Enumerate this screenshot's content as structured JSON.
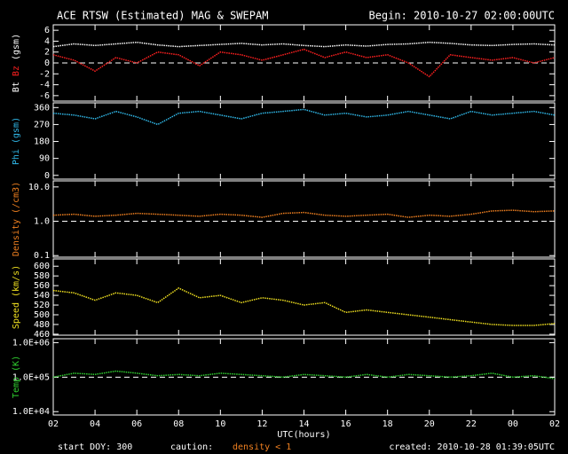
{
  "header": {
    "title": "ACE RTSW (Estimated) MAG & SWEPAM",
    "begin": "Begin: 2010-10-27 02:00:00UTC"
  },
  "chart_data": [
    {
      "type": "line",
      "ylabel": "(gsm)",
      "ylim": [
        -7,
        7
      ],
      "yticks": [
        6,
        4,
        2,
        0,
        -2,
        -4,
        -6
      ],
      "ref_line": 0,
      "xlim": [
        0,
        24
      ],
      "x": [
        0,
        1,
        2,
        3,
        4,
        5,
        6,
        7,
        8,
        9,
        10,
        11,
        12,
        13,
        14,
        15,
        16,
        17,
        18,
        19,
        20,
        21,
        22,
        23,
        24
      ],
      "series": [
        {
          "name": "Bt",
          "color": "#ffffff",
          "values": [
            3,
            3.5,
            3.2,
            3.5,
            3.8,
            3.3,
            3,
            3.2,
            3.4,
            3.6,
            3.3,
            3.5,
            3.2,
            3,
            3.3,
            3.1,
            3.4,
            3.5,
            3.8,
            3.6,
            3.3,
            3.2,
            3.4,
            3.5,
            3.3
          ]
        },
        {
          "name": "Bz",
          "color": "#ff2020",
          "values": [
            1.5,
            0.5,
            -1.5,
            1,
            0,
            2,
            1.5,
            -0.5,
            2,
            1.5,
            0.5,
            1.5,
            2.5,
            1,
            2,
            1,
            1.5,
            0,
            -2.5,
            1.5,
            1,
            0.5,
            1,
            0,
            1
          ]
        }
      ]
    },
    {
      "type": "line",
      "ylim": [
        -20,
        385
      ],
      "yticks": [
        360,
        270,
        180,
        90,
        0
      ],
      "xlim": [
        0,
        24
      ],
      "x": [
        0,
        1,
        2,
        3,
        4,
        5,
        6,
        7,
        8,
        9,
        10,
        11,
        12,
        13,
        14,
        15,
        16,
        17,
        18,
        19,
        20,
        21,
        22,
        23,
        24
      ],
      "series": [
        {
          "name": "Phi (gsm)",
          "color": "#30b8e8",
          "values": [
            330,
            320,
            300,
            340,
            310,
            270,
            330,
            340,
            320,
            300,
            330,
            340,
            350,
            320,
            330,
            310,
            320,
            340,
            320,
            300,
            340,
            320,
            330,
            340,
            320
          ]
        }
      ]
    },
    {
      "type": "line",
      "log": true,
      "ylim": [
        0.09,
        15
      ],
      "yticks": [
        {
          "value": 10,
          "label": "10.0"
        },
        {
          "value": 1,
          "label": "1.0"
        },
        0.1
      ],
      "ref_line": 1,
      "xlim": [
        0,
        24
      ],
      "x": [
        0,
        1,
        2,
        3,
        4,
        5,
        6,
        7,
        8,
        9,
        10,
        11,
        12,
        13,
        14,
        15,
        16,
        17,
        18,
        19,
        20,
        21,
        22,
        23,
        24
      ],
      "series": [
        {
          "name": "Density (/cm3)",
          "color": "#f08020",
          "values": [
            1.5,
            1.6,
            1.4,
            1.5,
            1.7,
            1.6,
            1.5,
            1.4,
            1.6,
            1.5,
            1.3,
            1.7,
            1.8,
            1.5,
            1.4,
            1.5,
            1.6,
            1.3,
            1.5,
            1.4,
            1.6,
            2,
            2.1,
            1.9,
            2
          ]
        }
      ]
    },
    {
      "type": "line",
      "ylim": [
        458,
        615
      ],
      "yticks": [
        600,
        580,
        560,
        540,
        520,
        500,
        480,
        460
      ],
      "xlim": [
        0,
        24
      ],
      "x": [
        0,
        1,
        2,
        3,
        4,
        5,
        6,
        7,
        8,
        9,
        10,
        11,
        12,
        13,
        14,
        15,
        16,
        17,
        18,
        19,
        20,
        21,
        22,
        23,
        24
      ],
      "series": [
        {
          "name": "Speed (km/s)",
          "color": "#f0e020",
          "values": [
            550,
            545,
            530,
            545,
            540,
            525,
            555,
            535,
            540,
            525,
            535,
            530,
            520,
            525,
            505,
            510,
            505,
            500,
            495,
            490,
            485,
            480,
            478,
            478,
            482
          ]
        }
      ]
    },
    {
      "type": "line",
      "log": true,
      "ylim": [
        8000,
        1300000
      ],
      "yticks": [
        {
          "value": 1000000,
          "label": "1.0E+06"
        },
        {
          "value": 100000,
          "label": "1.0E+05"
        },
        {
          "value": 10000,
          "label": "1.0E+04"
        }
      ],
      "ref_line": 100000,
      "xlim": [
        0,
        24
      ],
      "x": [
        0,
        1,
        2,
        3,
        4,
        5,
        6,
        7,
        8,
        9,
        10,
        11,
        12,
        13,
        14,
        15,
        16,
        17,
        18,
        19,
        20,
        21,
        22,
        23,
        24
      ],
      "xticks": [
        {
          "value": 0,
          "label": "02"
        },
        {
          "value": 2,
          "label": "04"
        },
        {
          "value": 4,
          "label": "06"
        },
        {
          "value": 6,
          "label": "08"
        },
        {
          "value": 8,
          "label": "10"
        },
        {
          "value": 10,
          "label": "12"
        },
        {
          "value": 12,
          "label": "14"
        },
        {
          "value": 14,
          "label": "16"
        },
        {
          "value": 16,
          "label": "18"
        },
        {
          "value": 18,
          "label": "20"
        },
        {
          "value": 20,
          "label": "22"
        },
        {
          "value": 22,
          "label": "00"
        },
        {
          "value": 24,
          "label": "02"
        }
      ],
      "xlabel": "UTC(hours)",
      "series": [
        {
          "name": "Temp (K)",
          "color": "#30d030",
          "values": [
            100000,
            130000,
            120000,
            150000,
            130000,
            110000,
            120000,
            110000,
            130000,
            120000,
            110000,
            100000,
            120000,
            110000,
            100000,
            120000,
            100000,
            120000,
            110000,
            100000,
            110000,
            130000,
            100000,
            110000,
            90000
          ]
        }
      ]
    }
  ],
  "footer": {
    "start": "start DOY: 300",
    "caution": "caution:",
    "density_note": "density < 1",
    "created": "created: 2010-10-28 01:39:05UTC"
  }
}
